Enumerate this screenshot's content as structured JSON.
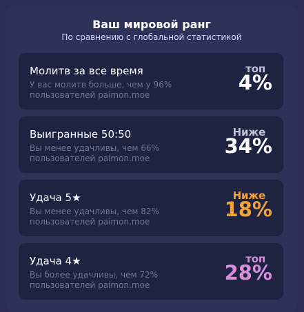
{
  "header": {
    "title": "Ваш мировой ранг",
    "subtitle": "По сравнению с глобальной статистикой"
  },
  "cards": [
    {
      "title": "Молитв за все время",
      "desc_line1": "У вас молитв больше, чем у 96%",
      "desc_line2": "пользователей paimon.moe",
      "rank_label": "топ",
      "rank_value": "4%",
      "label_color": "#bfc3d6",
      "value_color": "#ffffff"
    },
    {
      "title": "Выигранные 50:50",
      "desc_line1": "Вы менее удачливы, чем 66%",
      "desc_line2": "пользователей paimon.moe",
      "rank_label": "Ниже",
      "rank_value": "34%",
      "label_color": "#bfc3d6",
      "value_color": "#ffffff"
    },
    {
      "title": "Удача 5★",
      "desc_line1": "Вы менее удачливы, чем 82%",
      "desc_line2": "пользователей paimon.moe",
      "rank_label": "Ниже",
      "rank_value": "18%",
      "label_color": "#f2a13b",
      "value_color": "#f2a13b"
    },
    {
      "title": "Удача 4★",
      "desc_line1": "Вы более удачливы, чем 72%",
      "desc_line2": "пользователей paimon.moe",
      "rank_label": "топ",
      "rank_value": "28%",
      "label_color": "#d78fd9",
      "value_color": "#d78fd9"
    }
  ]
}
